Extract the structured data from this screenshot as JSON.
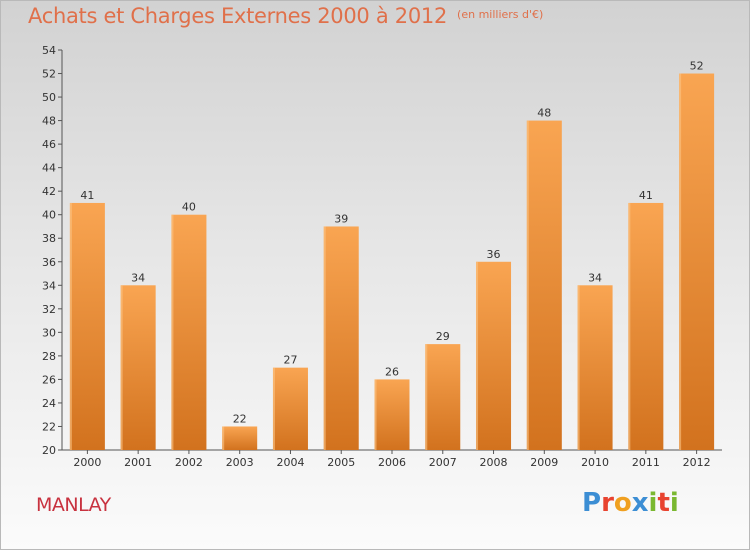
{
  "header": {
    "title": "Achats et Charges Externes 2000 à 2012",
    "unit": "(en milliers d'€)"
  },
  "footer": {
    "commune": "MANLAY",
    "brand": "Proxiti"
  },
  "colors": {
    "title": "#e0704a",
    "commune": "#c8323f",
    "bar_light": "#f9a552",
    "bar_dark": "#d2721e",
    "brand_letters": [
      "#3c8ed4",
      "#e8432f",
      "#f0a020",
      "#3c8ed4",
      "#7ab830",
      "#e8432f",
      "#7ab830"
    ]
  },
  "chart_data": {
    "type": "bar",
    "title": "Achats et Charges Externes 2000 à 2012",
    "subtitle": "(en milliers d'€)",
    "categories": [
      "2000",
      "2001",
      "2002",
      "2003",
      "2004",
      "2005",
      "2006",
      "2007",
      "2008",
      "2009",
      "2010",
      "2011",
      "2012"
    ],
    "values": [
      41,
      34,
      40,
      22,
      27,
      39,
      26,
      29,
      36,
      48,
      34,
      41,
      52
    ],
    "ylim": [
      20,
      54
    ],
    "yticks": [
      20,
      22,
      24,
      26,
      28,
      30,
      32,
      34,
      36,
      38,
      40,
      42,
      44,
      46,
      48,
      50,
      52,
      54
    ],
    "grid": false,
    "legend": "none"
  }
}
